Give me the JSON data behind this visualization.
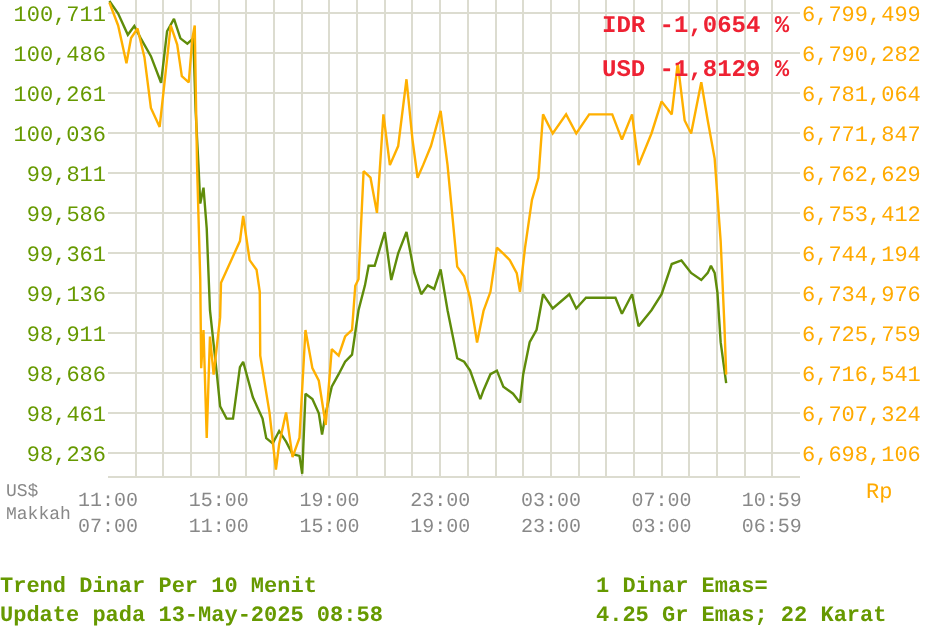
{
  "chart_data": {
    "type": "line",
    "title": "Trend Dinar Per 10 Menit",
    "subtitle": "Update pada 13-May-2025 08:58",
    "annotations": [
      "IDR -1,0654 %",
      "USD -1,8129 %",
      "US$\nMakkah",
      "Rp",
      "1 Dinar Emas=\n4.25 Gr Emas; 22 Karat"
    ],
    "series": [
      {
        "color": "#5f8c0a",
        "axis": "y",
        "x": [
          "2025-05-12T11:03",
          "2025-05-12T11:22",
          "2025-05-12T11:43",
          "2025-05-12T11:57",
          "2025-05-12T12:11",
          "2025-05-12T12:33",
          "2025-05-12T12:55",
          "2025-05-12T13:08",
          "2025-05-12T13:23",
          "2025-05-12T13:37",
          "2025-05-12T13:52",
          "2025-05-12T14:05",
          "2025-05-12T14:10",
          "2025-05-12T14:16",
          "2025-05-12T14:20",
          "2025-05-12T14:27",
          "2025-05-12T14:34",
          "2025-05-12T14:41",
          "2025-05-12T14:56",
          "2025-05-12T15:03",
          "2025-05-12T15:17",
          "2025-05-12T15:31",
          "2025-05-12T15:46",
          "2025-05-12T15:53",
          "2025-05-12T16:14",
          "2025-05-12T16:35",
          "2025-05-12T16:43",
          "2025-05-12T16:57",
          "2025-05-12T17:11",
          "2025-05-12T17:26",
          "2025-05-12T17:40",
          "2025-05-12T17:55",
          "2025-05-12T18:01",
          "2025-05-12T18:08",
          "2025-05-12T18:23",
          "2025-05-12T18:37",
          "2025-05-12T18:44",
          "2025-05-12T18:52",
          "2025-05-12T19:05",
          "2025-05-12T19:20",
          "2025-05-12T19:34",
          "2025-05-12T19:49",
          "2025-05-12T20:03",
          "2025-05-12T20:17",
          "2025-05-12T20:25",
          "2025-05-12T20:38",
          "2025-05-12T21:00",
          "2025-05-12T21:14",
          "2025-05-12T21:29",
          "2025-05-12T21:47",
          "2025-05-12T22:04",
          "2025-05-12T22:19",
          "2025-05-12T22:33",
          "2025-05-12T22:47",
          "2025-05-12T23:01",
          "2025-05-12T23:16",
          "2025-05-12T23:37",
          "2025-05-12T23:52",
          "2025-05-13T00:05",
          "2025-05-13T00:27",
          "2025-05-13T00:34",
          "2025-05-13T00:49",
          "2025-05-13T01:03",
          "2025-05-13T01:17",
          "2025-05-13T01:38",
          "2025-05-13T01:53",
          "2025-05-13T02:00",
          "2025-05-13T02:14",
          "2025-05-13T02:29",
          "2025-05-13T02:43",
          "2025-05-13T03:04",
          "2025-05-13T03:40",
          "2025-05-13T03:55",
          "2025-05-13T04:16",
          "2025-05-13T05:20",
          "2025-05-13T05:34",
          "2025-05-13T05:56",
          "2025-05-13T06:10",
          "2025-05-13T06:38",
          "2025-05-13T07:00",
          "2025-05-13T07:22",
          "2025-05-13T07:43",
          "2025-05-13T08:04",
          "2025-05-13T08:26",
          "2025-05-13T08:40",
          "2025-05-13T08:47",
          "2025-05-13T08:55",
          "2025-05-13T09:01",
          "2025-05-13T09:08",
          "2025-05-13T09:20"
        ],
        "values": [
          100780,
          100710,
          100590,
          100640,
          100570,
          100470,
          100320,
          100610,
          100680,
          100570,
          100540,
          100570,
          100160,
          99860,
          99640,
          99730,
          99500,
          99040,
          98680,
          98500,
          98430,
          98430,
          98720,
          98750,
          98550,
          98430,
          98320,
          98290,
          98360,
          98300,
          98230,
          98220,
          98120,
          98570,
          98540,
          98460,
          98340,
          98460,
          98610,
          98680,
          98750,
          98790,
          99040,
          99180,
          99290,
          99290,
          99480,
          99210,
          99360,
          99480,
          99250,
          99130,
          99180,
          99160,
          99270,
          99040,
          98770,
          98750,
          98700,
          98540,
          98590,
          98680,
          98700,
          98610,
          98570,
          98520,
          98680,
          98860,
          98930,
          99130,
          99050,
          99130,
          99050,
          99110,
          99110,
          99020,
          99130,
          98950,
          99040,
          99130,
          99300,
          99320,
          99250,
          99210,
          99250,
          99290,
          99250,
          99140,
          98860,
          98630
        ]
      },
      {
        "color": "#ffb000",
        "axis": "y2",
        "x": [
          "2025-05-12T11:03",
          "2025-05-12T11:22",
          "2025-05-12T11:40",
          "2025-05-12T11:50",
          "2025-05-12T12:04",
          "2025-05-12T12:19",
          "2025-05-12T12:33",
          "2025-05-12T12:52",
          "2025-05-12T13:01",
          "2025-05-12T13:16",
          "2025-05-12T13:30",
          "2025-05-12T13:40",
          "2025-05-12T13:55",
          "2025-05-12T14:03",
          "2025-05-12T14:08",
          "2025-05-12T14:13",
          "2025-05-12T14:20",
          "2025-05-12T14:22",
          "2025-05-12T14:27",
          "2025-05-12T14:34",
          "2025-05-12T14:41",
          "2025-05-12T14:49",
          "2025-05-12T15:03",
          "2025-05-12T15:05",
          "2025-05-12T15:46",
          "2025-05-12T15:53",
          "2025-05-12T16:07",
          "2025-05-12T16:22",
          "2025-05-12T16:29",
          "2025-05-12T16:30",
          "2025-05-12T16:50",
          "2025-05-12T17:04",
          "2025-05-12T17:11",
          "2025-05-12T17:26",
          "2025-05-12T17:40",
          "2025-05-12T17:55",
          "2025-05-12T18:08",
          "2025-05-12T18:23",
          "2025-05-12T18:37",
          "2025-05-12T18:52",
          "2025-05-12T19:05",
          "2025-05-12T19:20",
          "2025-05-12T19:34",
          "2025-05-12T19:49",
          "2025-05-12T19:56",
          "2025-05-12T20:03",
          "2025-05-12T20:14",
          "2025-05-12T20:29",
          "2025-05-12T20:43",
          "2025-05-12T20:57",
          "2025-05-12T21:11",
          "2025-05-12T21:29",
          "2025-05-12T21:47",
          "2025-05-12T22:00",
          "2025-05-12T22:11",
          "2025-05-12T22:23",
          "2025-05-12T22:40",
          "2025-05-12T23:01",
          "2025-05-12T23:16",
          "2025-05-12T23:37",
          "2025-05-12T23:52",
          "2025-05-13T00:05",
          "2025-05-13T00:20",
          "2025-05-13T00:34",
          "2025-05-13T00:49",
          "2025-05-13T01:03",
          "2025-05-13T01:17",
          "2025-05-13T01:31",
          "2025-05-13T01:46",
          "2025-05-13T01:53",
          "2025-05-13T02:04",
          "2025-05-13T02:19",
          "2025-05-13T02:33",
          "2025-05-13T02:43",
          "2025-05-13T03:04",
          "2025-05-13T03:33",
          "2025-05-13T03:55",
          "2025-05-13T04:23",
          "2025-05-13T05:13",
          "2025-05-13T05:34",
          "2025-05-13T05:56",
          "2025-05-13T06:10",
          "2025-05-13T06:38",
          "2025-05-13T07:00",
          "2025-05-13T07:22",
          "2025-05-13T07:35",
          "2025-05-13T07:50",
          "2025-05-13T08:04",
          "2025-05-13T08:26",
          "2025-05-13T08:40",
          "2025-05-13T08:55",
          "2025-05-13T09:08",
          "2025-05-13T09:16",
          "2025-05-13T09:20"
        ],
        "values": [
          6802000,
          6796700,
          6788000,
          6793800,
          6796000,
          6789400,
          6777700,
          6773300,
          6782100,
          6796700,
          6792300,
          6785000,
          6783600,
          6793800,
          6796700,
          6764500,
          6738200,
          6717700,
          6726500,
          6701600,
          6725000,
          6716200,
          6729400,
          6737400,
          6747000,
          6752800,
          6742600,
          6740400,
          6735300,
          6720600,
          6707500,
          6694300,
          6700200,
          6707500,
          6697200,
          6701600,
          6726500,
          6717700,
          6714800,
          6704600,
          6722100,
          6720600,
          6725000,
          6726500,
          6736700,
          6738200,
          6763100,
          6761600,
          6753500,
          6776200,
          6764500,
          6768900,
          6784300,
          6770400,
          6761600,
          6764500,
          6768900,
          6777000,
          6764500,
          6741100,
          6738900,
          6733800,
          6723600,
          6730900,
          6735300,
          6745500,
          6744100,
          6742600,
          6739600,
          6735300,
          6745500,
          6756500,
          6761600,
          6776200,
          6771800,
          6776200,
          6771800,
          6776200,
          6776200,
          6770400,
          6776200,
          6764500,
          6771800,
          6779200,
          6776200,
          6788000,
          6774800,
          6771800,
          6783600,
          6774800,
          6766000,
          6747000,
          6728000,
          6716200
        ]
      }
    ],
    "xlim": [
      "2025-05-12T11:00",
      "2025-05-13T12:00"
    ],
    "xticks": [
      {
        "value": "2025-05-12T11:00",
        "label": "11:00\n07:00"
      },
      {
        "value": "2025-05-12T12:00",
        "label": null
      },
      {
        "value": "2025-05-12T13:00",
        "label": null
      },
      {
        "value": "2025-05-12T14:00",
        "label": null
      },
      {
        "value": "2025-05-12T15:00",
        "label": "15:00\n11:00"
      },
      {
        "value": "2025-05-12T16:00",
        "label": null
      },
      {
        "value": "2025-05-12T17:00",
        "label": null
      },
      {
        "value": "2025-05-12T18:00",
        "label": null
      },
      {
        "value": "2025-05-12T19:00",
        "label": "19:00\n15:00"
      },
      {
        "value": "2025-05-12T20:00",
        "label": null
      },
      {
        "value": "2025-05-12T21:00",
        "label": null
      },
      {
        "value": "2025-05-12T22:00",
        "label": null
      },
      {
        "value": "2025-05-12T23:00",
        "label": "23:00\n19:00"
      },
      {
        "value": "2025-05-13T00:00",
        "label": null
      },
      {
        "value": "2025-05-13T01:00",
        "label": null
      },
      {
        "value": "2025-05-13T02:00",
        "label": null
      },
      {
        "value": "2025-05-13T03:00",
        "label": "03:00\n23:00"
      },
      {
        "value": "2025-05-13T04:00",
        "label": null
      },
      {
        "value": "2025-05-13T05:00",
        "label": null
      },
      {
        "value": "2025-05-13T06:00",
        "label": null
      },
      {
        "value": "2025-05-13T07:00",
        "label": "07:00\n03:00"
      },
      {
        "value": "2025-05-13T08:00",
        "label": null
      },
      {
        "value": "2025-05-13T09:00",
        "label": null
      },
      {
        "value": "2025-05-13T10:00",
        "label": null
      },
      {
        "value": "2025-05-13T10:59",
        "label": "10:59\n06:59"
      }
    ],
    "ylim": [
      98107,
      100786
    ],
    "yticks": [
      {
        "value": 100711,
        "label": "100,711"
      },
      {
        "value": 100486,
        "label": "100,486"
      },
      {
        "value": 100261,
        "label": "100,261"
      },
      {
        "value": 100036,
        "label": "100,036"
      },
      {
        "value": 99811,
        "label": "99,811"
      },
      {
        "value": 99586,
        "label": "99,586"
      },
      {
        "value": 99361,
        "label": "99,361"
      },
      {
        "value": 99136,
        "label": "99,136"
      },
      {
        "value": 98911,
        "label": "98,911"
      },
      {
        "value": 98686,
        "label": "98,686"
      },
      {
        "value": 98461,
        "label": "98,461"
      },
      {
        "value": 98236,
        "label": "98,236"
      }
    ],
    "y2lim": [
      6692839,
      6802571
    ],
    "y2ticks": [
      {
        "value": 6799499,
        "label": "6,799,499"
      },
      {
        "value": 6790282,
        "label": "6,790,282"
      },
      {
        "value": 6781064,
        "label": "6,781,064"
      },
      {
        "value": 6771847,
        "label": "6,771,847"
      },
      {
        "value": 6762629,
        "label": "6,762,629"
      },
      {
        "value": 6753412,
        "label": "6,753,412"
      },
      {
        "value": 6744194,
        "label": "6,744,194"
      },
      {
        "value": 6734976,
        "label": "6,734,976"
      },
      {
        "value": 6725759,
        "label": "6,725,759"
      },
      {
        "value": 6716541,
        "label": "6,716,541"
      },
      {
        "value": 6707324,
        "label": "6,707,324"
      },
      {
        "value": 6698106,
        "label": "6,698,106"
      }
    ],
    "grid": true,
    "marker": "none",
    "line_style": "solid"
  }
}
